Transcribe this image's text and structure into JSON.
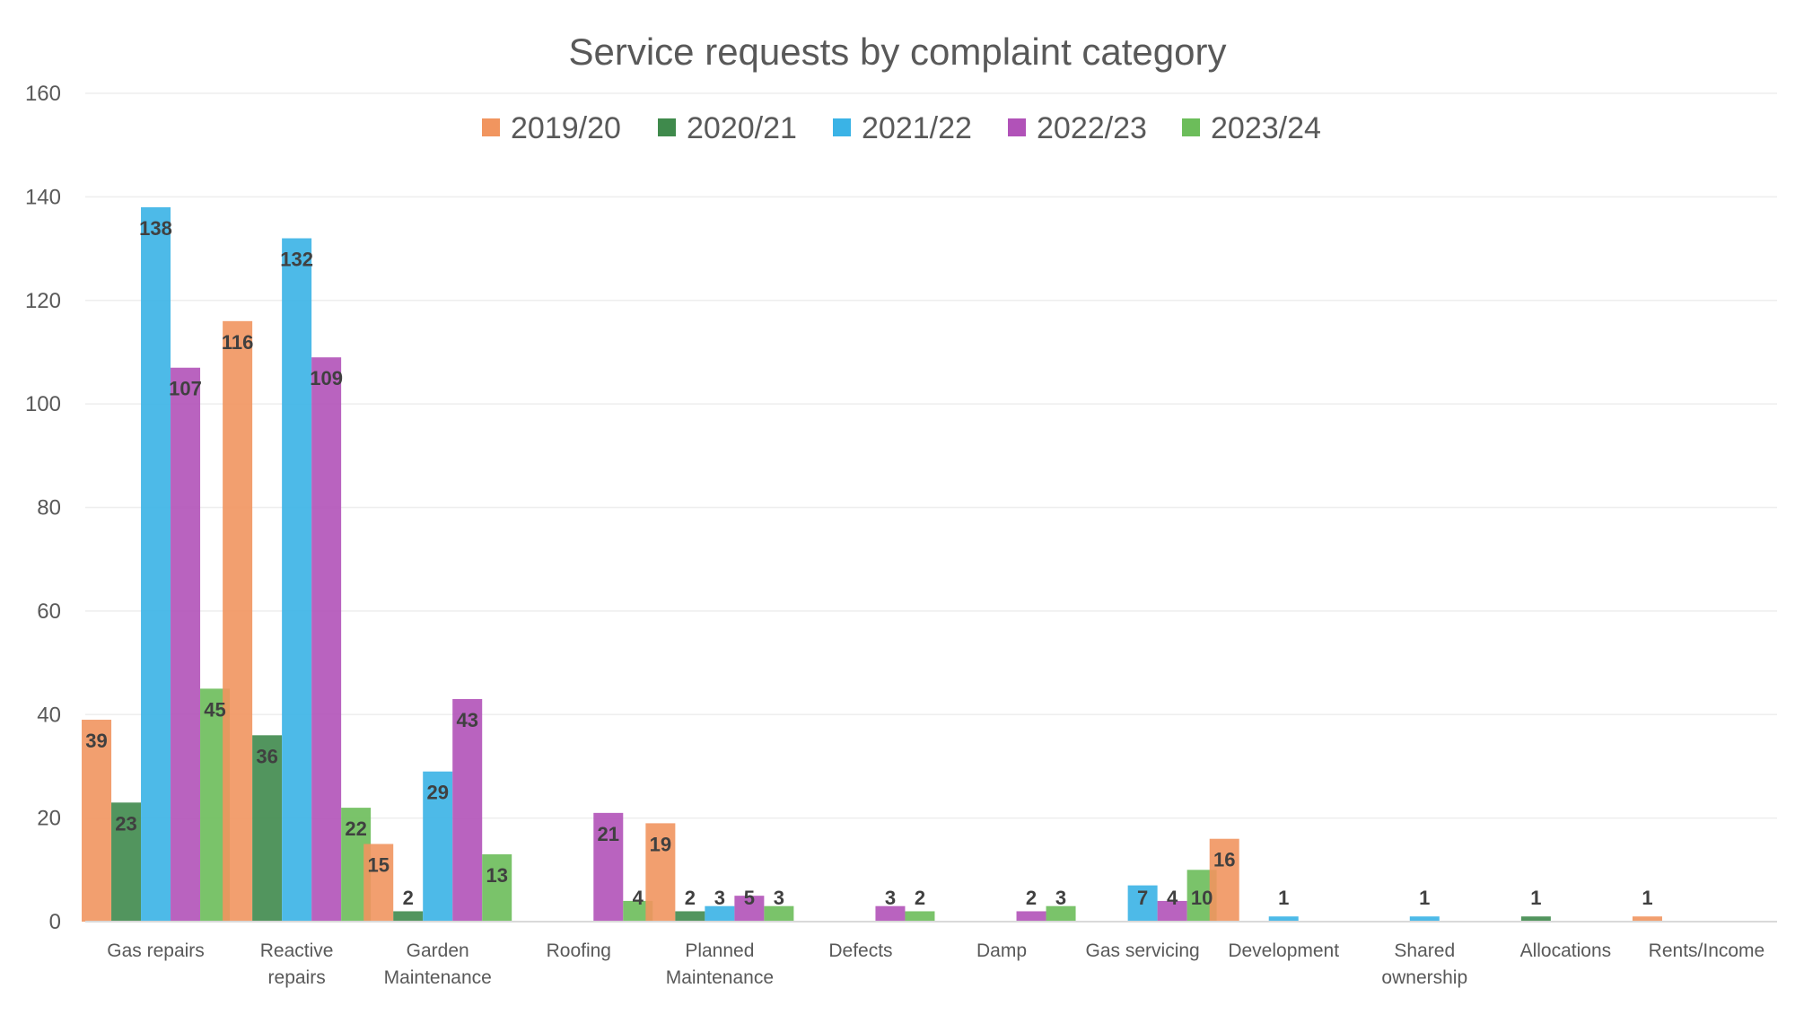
{
  "chart_data": {
    "type": "bar",
    "title": "Service requests by complaint category",
    "xlabel": "",
    "ylabel": "",
    "ylim": [
      0,
      160
    ],
    "yticks": [
      0,
      20,
      40,
      60,
      80,
      100,
      120,
      140,
      160
    ],
    "grid": true,
    "legend_position": "top",
    "categories": [
      "Gas repairs",
      "Reactive repairs",
      "Garden Maintenance",
      "Roofing",
      "Planned Maintenance",
      "Defects",
      "Damp",
      "Gas servicing",
      "Development",
      "Shared ownership",
      "Allocations",
      "Rents/Income"
    ],
    "category_label_lines": [
      [
        "Gas repairs"
      ],
      [
        "Reactive",
        "repairs"
      ],
      [
        "Garden",
        "Maintenance"
      ],
      [
        "Roofing"
      ],
      [
        "Planned",
        "Maintenance"
      ],
      [
        "Defects"
      ],
      [
        "Damp"
      ],
      [
        "Gas servicing"
      ],
      [
        "Development"
      ],
      [
        "Shared",
        "ownership"
      ],
      [
        "Allocations"
      ],
      [
        "Rents/Income"
      ]
    ],
    "series": [
      {
        "name": "2019/20",
        "color": "#f1955f",
        "values": [
          39,
          116,
          15,
          null,
          19,
          null,
          null,
          null,
          16,
          null,
          null,
          1
        ]
      },
      {
        "name": "2020/21",
        "color": "#3f8a4c",
        "values": [
          23,
          36,
          2,
          null,
          2,
          null,
          null,
          null,
          null,
          null,
          1,
          null
        ]
      },
      {
        "name": "2021/22",
        "color": "#3ab3e6",
        "values": [
          138,
          132,
          29,
          null,
          3,
          null,
          null,
          7,
          1,
          1,
          null,
          null
        ]
      },
      {
        "name": "2022/23",
        "color": "#b152b8",
        "values": [
          107,
          109,
          43,
          21,
          5,
          3,
          2,
          4,
          null,
          null,
          null,
          null
        ]
      },
      {
        "name": "2023/24",
        "color": "#6cbd5a",
        "values": [
          45,
          22,
          13,
          4,
          3,
          2,
          3,
          10,
          null,
          null,
          null,
          null
        ]
      }
    ]
  }
}
